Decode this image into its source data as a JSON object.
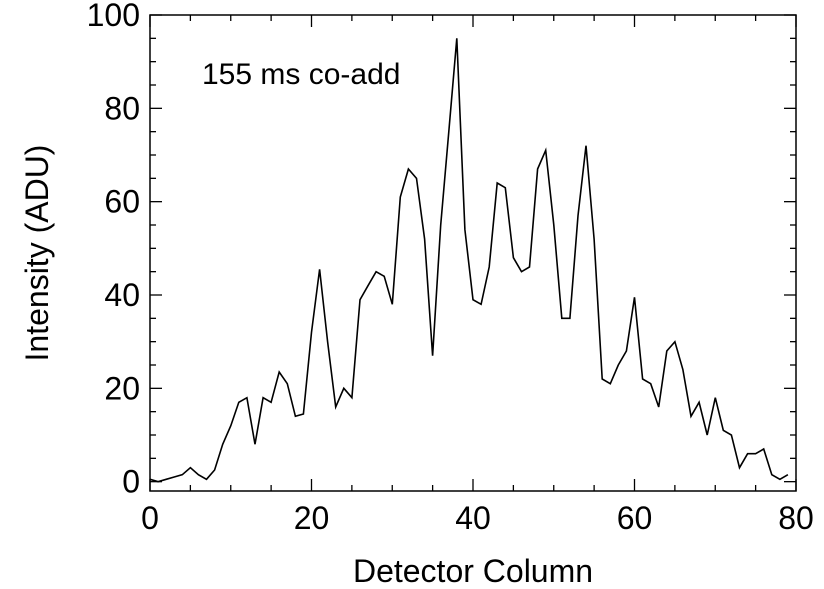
{
  "chart_data": {
    "type": "line",
    "title": "",
    "xlabel": "Detector Column",
    "ylabel": "Intensity (ADU)",
    "annotation": "155 ms co-add",
    "xlim": [
      0,
      80
    ],
    "ylim": [
      -2,
      100
    ],
    "x_ticks": [
      0,
      20,
      40,
      60,
      80
    ],
    "y_ticks": [
      0,
      20,
      40,
      60,
      80,
      100
    ],
    "grid": false,
    "legend": "none",
    "line_color": "#000000",
    "series": [
      {
        "x": [
          0,
          1,
          2,
          3,
          4,
          5,
          6,
          7,
          8,
          9,
          10,
          11,
          12,
          13,
          14,
          15,
          16,
          17,
          18,
          19,
          20,
          21,
          22,
          23,
          24,
          25,
          26,
          27,
          28,
          29,
          30,
          31,
          32,
          33,
          34,
          35,
          36,
          37,
          38,
          39,
          40,
          41,
          42,
          43,
          44,
          45,
          46,
          47,
          48,
          49,
          50,
          51,
          52,
          53,
          54,
          55,
          56,
          57,
          58,
          59,
          60,
          61,
          62,
          63,
          64,
          65,
          66,
          67,
          68,
          69,
          70,
          71,
          72,
          73,
          74,
          75,
          76,
          77,
          78,
          79
        ],
        "y": [
          0.5,
          0,
          0.5,
          1,
          1.5,
          3,
          1.5,
          0.5,
          2.5,
          8,
          12,
          17,
          18,
          8,
          18,
          17,
          23.5,
          21,
          14,
          14.5,
          32,
          45.5,
          30,
          16,
          20,
          18,
          39,
          42,
          45,
          44,
          38,
          61,
          67,
          65,
          52,
          27,
          55,
          75,
          95,
          54,
          39,
          38,
          46,
          64,
          63,
          48,
          45,
          46,
          67,
          71,
          55,
          35,
          35,
          57,
          72,
          52,
          22,
          21,
          25,
          28,
          39.5,
          22,
          21,
          16,
          28,
          30,
          24,
          14,
          17,
          10,
          18,
          11,
          10,
          3,
          6,
          6,
          7,
          1.5,
          0.5,
          1.5
        ]
      }
    ]
  }
}
